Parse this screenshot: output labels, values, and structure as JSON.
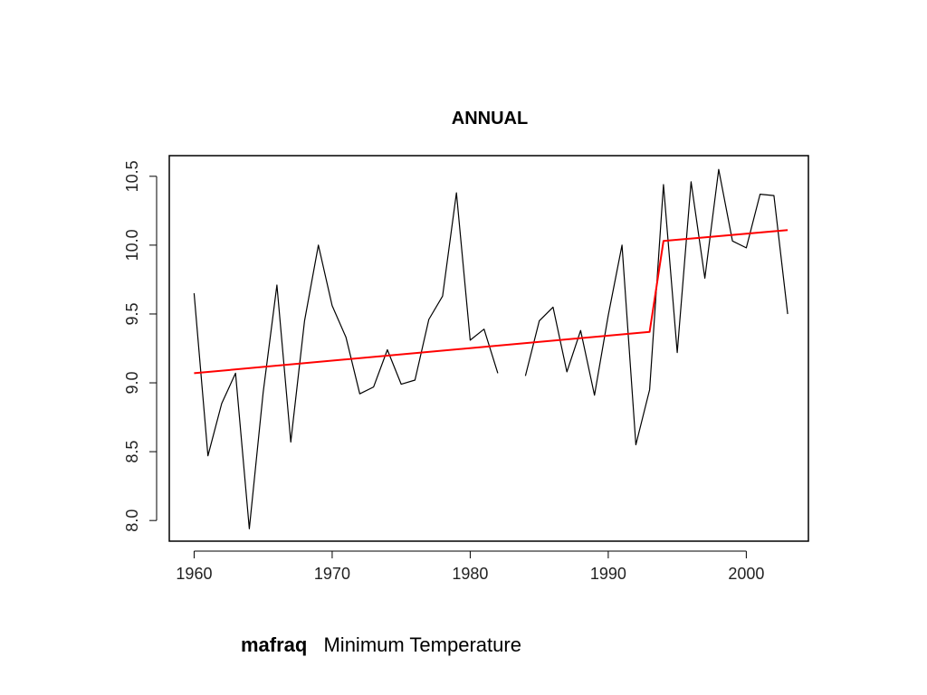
{
  "caption": {
    "station": "mafraq",
    "variable": "Minimum Temperature"
  },
  "colors": {
    "series": "#000000",
    "trend": "#ff0000",
    "frame": "#000000",
    "background": "#ffffff"
  },
  "chart_data": {
    "type": "line",
    "title": "ANNUAL",
    "xlabel": "",
    "ylabel": "",
    "xlim": [
      1958.2,
      2004.5
    ],
    "ylim": [
      7.85,
      10.65
    ],
    "grid": false,
    "x_ticks": [
      1960,
      1970,
      1980,
      1990,
      2000
    ],
    "x_tick_labels": [
      "1960",
      "1970",
      "1980",
      "1990",
      "2000"
    ],
    "y_ticks": [
      8.0,
      8.5,
      9.0,
      9.5,
      10.0,
      10.5
    ],
    "y_tick_labels": [
      "8.0",
      "8.5",
      "9.0",
      "9.5",
      "10.0",
      "10.5"
    ],
    "series": [
      {
        "style": "line",
        "x": [
          1960,
          1961,
          1962,
          1963,
          1964,
          1965,
          1966,
          1967,
          1968,
          1969,
          1970,
          1971,
          1972,
          1973,
          1974,
          1975,
          1976,
          1977,
          1978,
          1979,
          1980,
          1981,
          1982,
          1983,
          1984,
          1985,
          1986,
          1987,
          1988,
          1989,
          1990,
          1991,
          1992,
          1993,
          1994,
          1995,
          1996,
          1997,
          1998,
          1999,
          2000,
          2001,
          2002,
          2003
        ],
        "y": [
          9.65,
          8.47,
          8.85,
          9.07,
          7.94,
          8.93,
          9.71,
          8.57,
          9.45,
          10.0,
          9.56,
          9.33,
          8.92,
          8.97,
          9.24,
          8.99,
          9.02,
          9.46,
          9.63,
          10.38,
          9.31,
          9.39,
          9.07,
          null,
          9.05,
          9.45,
          9.55,
          9.08,
          9.38,
          8.91,
          9.49,
          10.0,
          8.55,
          8.95,
          10.44,
          9.22,
          10.46,
          9.76,
          10.55,
          10.03,
          9.98,
          10.37,
          10.36,
          9.5
        ]
      },
      {
        "style": "trend",
        "x": [
          1960,
          1993,
          1994,
          2003
        ],
        "y": [
          9.07,
          9.37,
          10.03,
          10.11
        ]
      }
    ]
  }
}
